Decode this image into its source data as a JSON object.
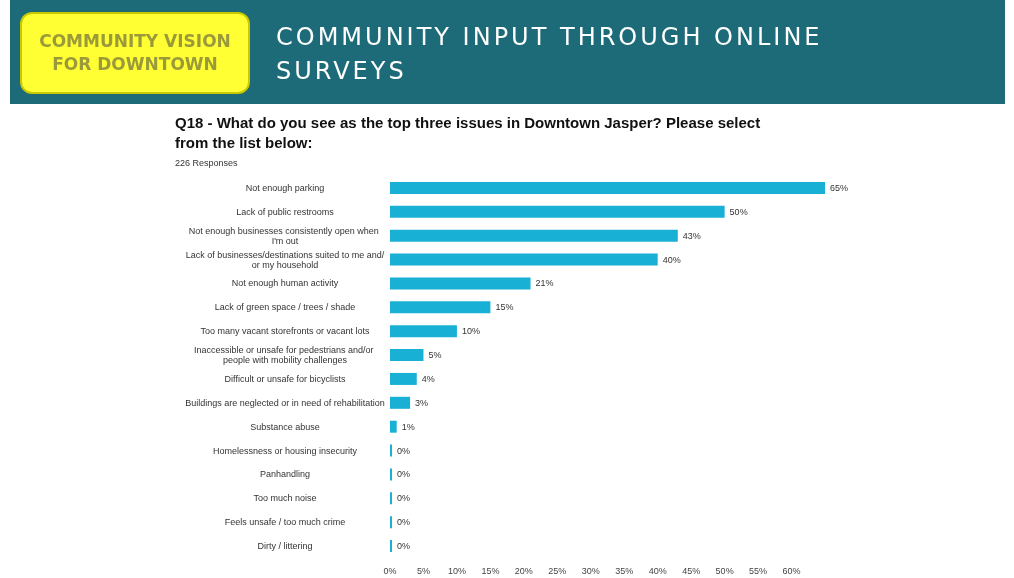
{
  "chart_data": {
    "type": "bar",
    "orientation": "horizontal",
    "title": "Q18 - What do you see as the top three issues in Downtown Jasper? Please select from the list below:",
    "subtitle": "226 Responses",
    "annotations": [
      "COMMUNITY VISION FOR DOWNTOWN",
      "COMMUNITY INPUT THROUGH ONLINE SURVEYS"
    ],
    "categories": [
      "Not enough parking",
      "Lack of public restrooms",
      "Not enough businesses consistently open when I'm out",
      "Lack of businesses/destinations suited to me and/or my household",
      "Not enough human activity",
      "Lack of green space / trees / shade",
      "Too many vacant storefronts or vacant lots",
      "Inaccessible or unsafe for pedestrians and/or people with mobility challenges",
      "Difficult or unsafe for bicyclists",
      "Buildings are neglected or in need of rehabilitation",
      "Substance abuse",
      "Homelessness or housing insecurity",
      "Panhandling",
      "Too much noise",
      "Feels unsafe / too much crime",
      "Dirty / littering"
    ],
    "values": [
      65,
      50,
      43,
      40,
      21,
      15,
      10,
      5,
      4,
      3,
      1,
      0,
      0,
      0,
      0,
      0
    ],
    "value_labels": [
      "65%",
      "50%",
      "43%",
      "40%",
      "21%",
      "15%",
      "10%",
      "5%",
      "4%",
      "3%",
      "1%",
      "0%",
      "0%",
      "0%",
      "0%",
      "0%"
    ],
    "color": "#19b0d6",
    "xlim": [
      0,
      65
    ],
    "xticks": [
      {
        "value": 0,
        "label": "0%"
      },
      {
        "value": 5,
        "label": "5%"
      },
      {
        "value": 10,
        "label": "10%"
      },
      {
        "value": 15,
        "label": "15%"
      },
      {
        "value": 20,
        "label": "20%"
      },
      {
        "value": 25,
        "label": "25%"
      },
      {
        "value": 30,
        "label": "30%"
      },
      {
        "value": 35,
        "label": "35%"
      },
      {
        "value": 40,
        "label": "40%"
      },
      {
        "value": 45,
        "label": "45%"
      },
      {
        "value": 50,
        "label": "50%"
      },
      {
        "value": 55,
        "label": "55%"
      },
      {
        "value": 60,
        "label": "60%"
      }
    ],
    "grid": false
  }
}
